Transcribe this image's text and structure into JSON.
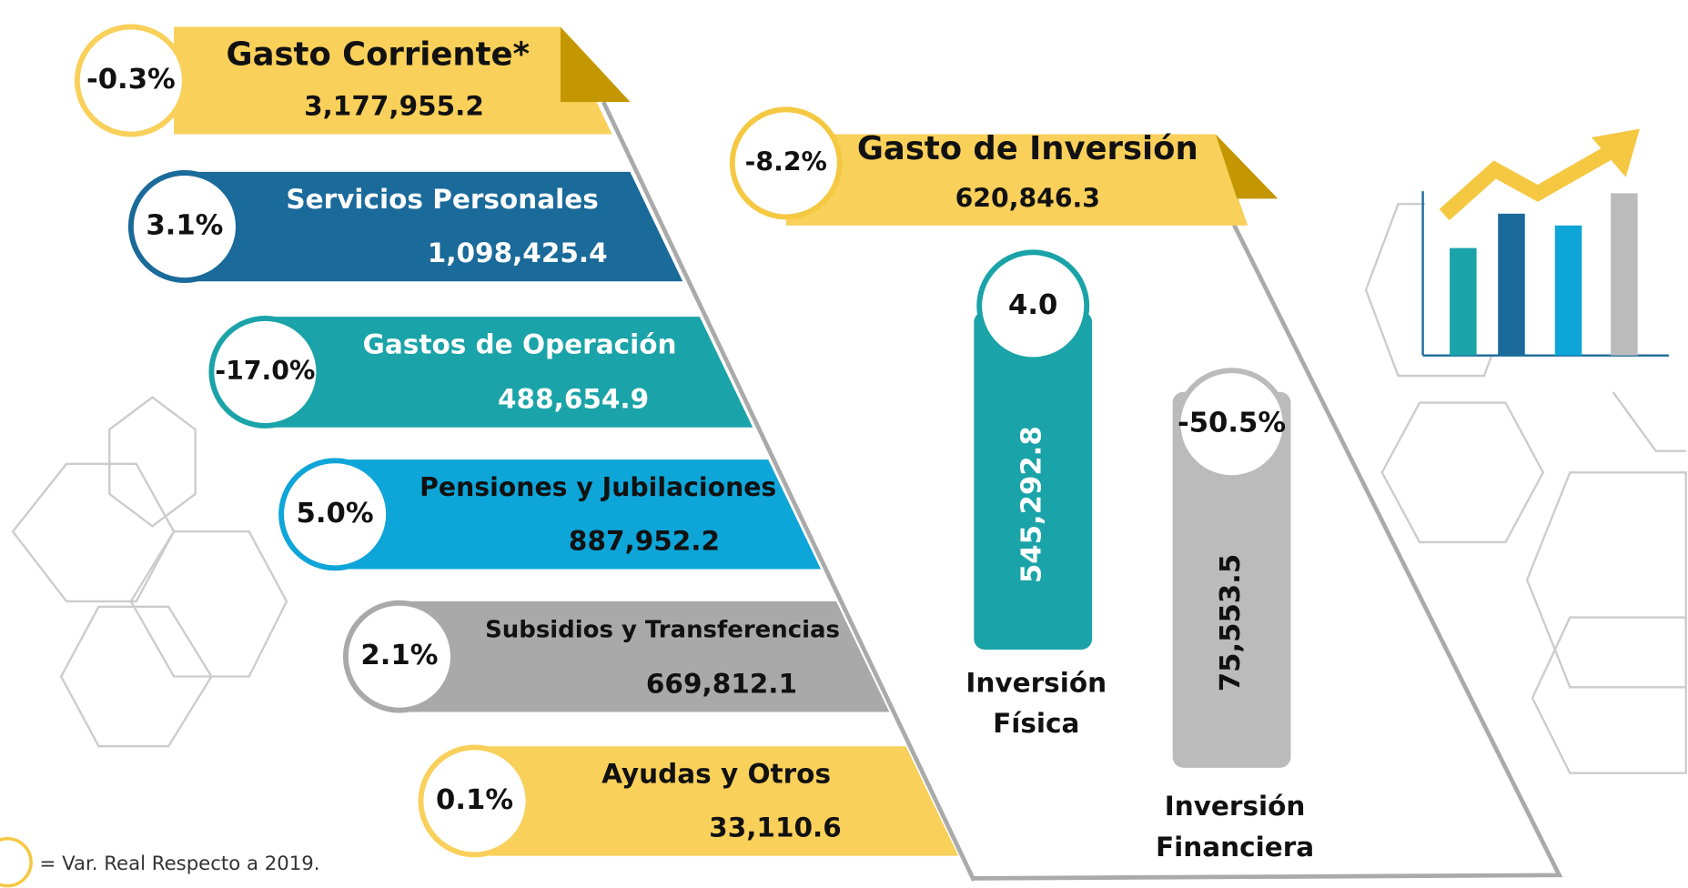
{
  "legend": "= Var. Real Respecto a 2019.",
  "gasto_corriente": {
    "title": "Gasto Corriente*",
    "value": "3,177,955.2",
    "change": "-0.3%",
    "items": [
      {
        "label": "Servicios Personales",
        "value": "1,098,425.4",
        "change": "3.1%"
      },
      {
        "label": "Gastos de Operación",
        "value": "488,654.9",
        "change": "-17.0%"
      },
      {
        "label": "Pensiones y Jubilaciones",
        "value": "887,952.2",
        "change": "5.0%"
      },
      {
        "label": "Subsidios y Transferencias",
        "value": "669,812.1",
        "change": "2.1%"
      },
      {
        "label": "Ayudas y Otros",
        "value": "33,110.6",
        "change": "0.1%"
      }
    ]
  },
  "gasto_inversion": {
    "title": "Gasto de Inversión",
    "value": "620,846.3",
    "change": "-8.2%",
    "items": [
      {
        "label_lines": [
          "Inversión",
          "Física"
        ],
        "value": "545,292.8",
        "change": "4.0"
      },
      {
        "label_lines": [
          "Inversión",
          "Financiera"
        ],
        "value": "75,553.5",
        "change": "-50.5%"
      }
    ]
  }
}
